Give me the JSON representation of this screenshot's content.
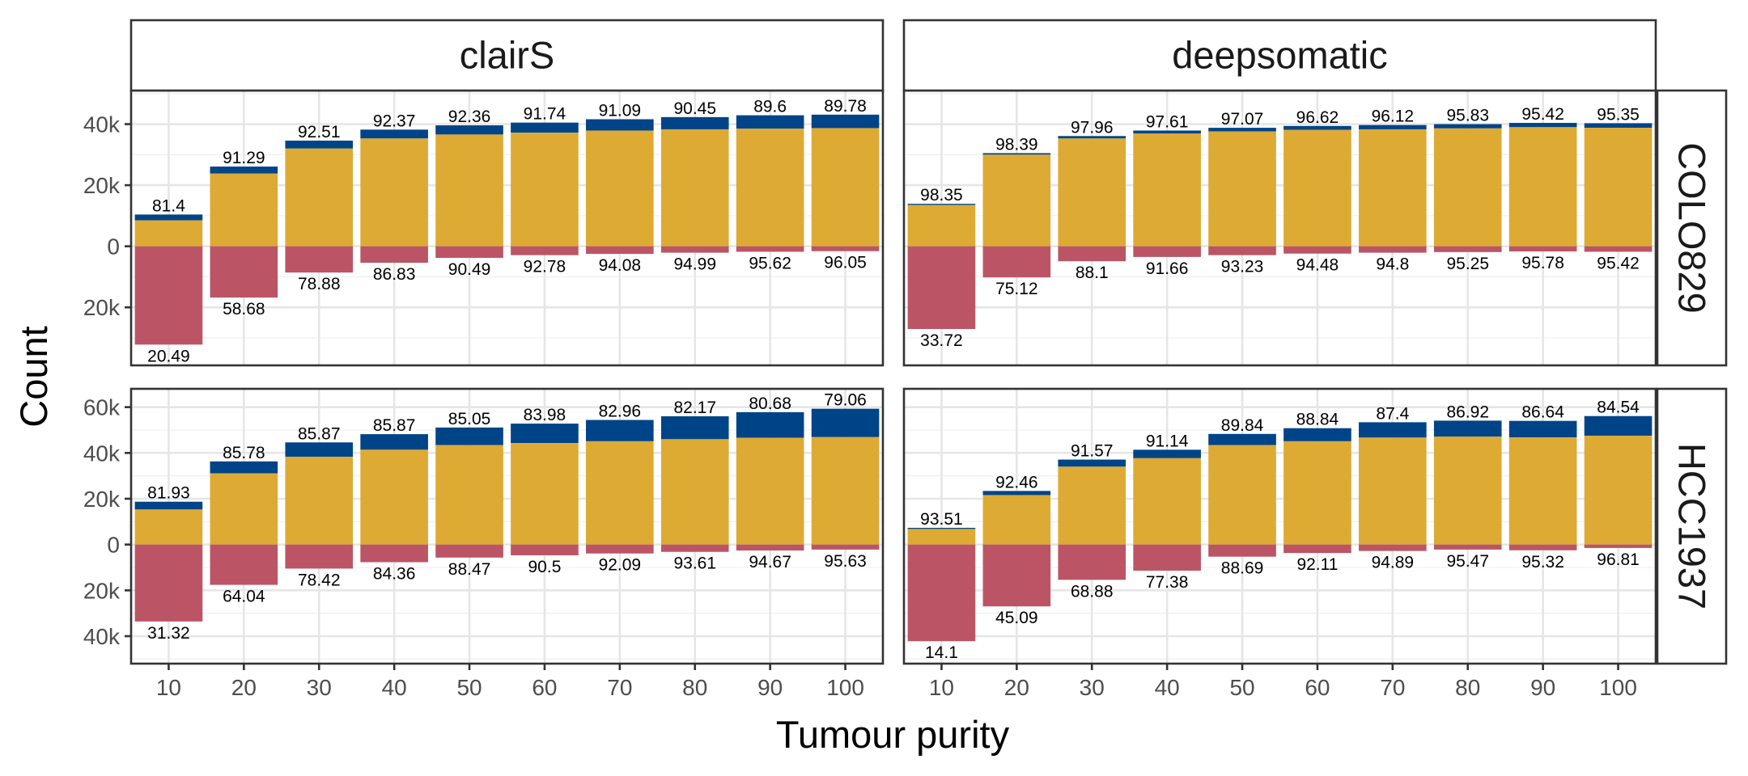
{
  "chart_data": {
    "type": "bar",
    "xlabel": "Tumour purity",
    "ylabel": "Count",
    "columns": [
      "clairS",
      "deepsomatic"
    ],
    "rows": [
      "COLO829",
      "HCC1937"
    ],
    "categories": [
      "10",
      "20",
      "30",
      "40",
      "50",
      "60",
      "70",
      "80",
      "90",
      "100"
    ],
    "colors": {
      "top": "#004488",
      "mid": "#DDAA33",
      "neg": "#BB5566"
    },
    "grid": true,
    "panels": [
      {
        "column": "clairS",
        "row": "COLO829",
        "ylim": [
          -39000,
          51000
        ],
        "yticks": [
          -20000,
          0,
          20000,
          40000
        ],
        "yticklabels": [
          "20k",
          "0",
          "20k",
          "40k"
        ],
        "mid": [
          8500,
          23800,
          32000,
          35300,
          36600,
          37200,
          37900,
          38300,
          38500,
          38700
        ],
        "top": [
          10400,
          26100,
          34600,
          38200,
          39600,
          40500,
          41600,
          42300,
          42900,
          43100
        ],
        "neg": [
          -32200,
          -16800,
          -8600,
          -5400,
          -3800,
          -2900,
          -2500,
          -2100,
          -1800,
          -1600
        ],
        "top_labels": [
          "81.4",
          "91.29",
          "92.51",
          "92.37",
          "92.36",
          "91.74",
          "91.09",
          "90.45",
          "89.6",
          "89.78"
        ],
        "neg_labels": [
          "20.49",
          "58.68",
          "78.88",
          "86.83",
          "90.49",
          "92.78",
          "94.08",
          "94.99",
          "95.62",
          "96.05"
        ]
      },
      {
        "column": "deepsomatic",
        "row": "COLO829",
        "ylim": [
          -39000,
          51000
        ],
        "yticks": [
          -20000,
          0,
          20000,
          40000
        ],
        "yticklabels": [
          "20k",
          "0",
          "20k",
          "40k"
        ],
        "mid": [
          13500,
          30000,
          35300,
          36900,
          37600,
          38100,
          38300,
          38600,
          39000,
          38800
        ],
        "top": [
          13900,
          30500,
          36100,
          37900,
          38800,
          39400,
          39700,
          40000,
          40400,
          40300
        ],
        "neg": [
          -27100,
          -10200,
          -4900,
          -3500,
          -2900,
          -2400,
          -2100,
          -1900,
          -1700,
          -1800
        ],
        "top_labels": [
          "98.35",
          "98.39",
          "97.96",
          "97.61",
          "97.07",
          "96.62",
          "96.12",
          "95.83",
          "95.42",
          "95.35"
        ],
        "neg_labels": [
          "33.72",
          "75.12",
          "88.1",
          "91.66",
          "93.23",
          "94.48",
          "94.8",
          "95.25",
          "95.78",
          "95.42"
        ]
      },
      {
        "column": "clairS",
        "row": "HCC1937",
        "ylim": [
          -52000,
          68000
        ],
        "yticks": [
          -40000,
          -20000,
          0,
          20000,
          40000,
          60000
        ],
        "yticklabels": [
          "40k",
          "20k",
          "0",
          "20k",
          "40k",
          "60k"
        ],
        "mid": [
          15300,
          31100,
          38300,
          41400,
          43400,
          44300,
          45100,
          46000,
          46600,
          46900
        ],
        "top": [
          18700,
          36300,
          44600,
          48200,
          51100,
          52800,
          54400,
          56000,
          57800,
          59300
        ],
        "neg": [
          -33600,
          -17600,
          -10500,
          -7700,
          -5700,
          -4700,
          -3900,
          -3200,
          -2600,
          -2200
        ],
        "top_labels": [
          "81.93",
          "85.78",
          "85.87",
          "85.87",
          "85.05",
          "83.98",
          "82.96",
          "82.17",
          "80.68",
          "79.06"
        ],
        "neg_labels": [
          "31.32",
          "64.04",
          "78.42",
          "84.36",
          "88.47",
          "90.5",
          "92.09",
          "93.61",
          "94.67",
          "95.63"
        ]
      },
      {
        "column": "deepsomatic",
        "row": "HCC1937",
        "ylim": [
          -52000,
          68000
        ],
        "yticks": [
          -40000,
          -20000,
          0,
          20000,
          40000,
          60000
        ],
        "yticklabels": [
          "40k",
          "20k",
          "0",
          "20k",
          "40k",
          "60k"
        ],
        "mid": [
          6800,
          21600,
          34000,
          37700,
          43400,
          45100,
          46700,
          47100,
          46800,
          47500
        ],
        "top": [
          7300,
          23400,
          37100,
          41400,
          48300,
          50800,
          53400,
          54100,
          54000,
          56100
        ],
        "neg": [
          -42200,
          -27000,
          -15400,
          -11400,
          -5300,
          -3700,
          -2800,
          -2200,
          -2500,
          -1500
        ],
        "top_labels": [
          "93.51",
          "92.46",
          "91.57",
          "91.14",
          "89.84",
          "88.84",
          "87.4",
          "86.92",
          "86.64",
          "84.54"
        ],
        "neg_labels": [
          "14.1",
          "45.09",
          "68.88",
          "77.38",
          "88.69",
          "92.11",
          "94.89",
          "95.47",
          "95.32",
          "96.81"
        ]
      }
    ]
  }
}
